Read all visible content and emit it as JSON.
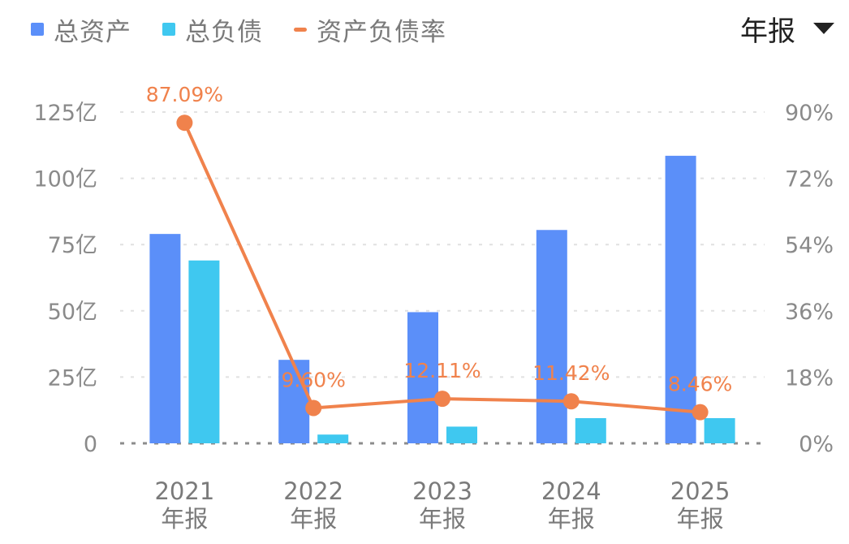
{
  "header": {
    "period_selector": {
      "label": "年报",
      "icon": "caret-down-icon"
    }
  },
  "chart_data": {
    "type": "bar",
    "categories": [
      "2021\n年报",
      "2022\n年报",
      "2023\n年报",
      "2024\n年报",
      "2025\n年报"
    ],
    "series": [
      {
        "name": "总资产",
        "kind": "bar",
        "axis": "left",
        "color": "#5b8ff9",
        "values": [
          79,
          31.5,
          49.5,
          80.5,
          108.5
        ]
      },
      {
        "name": "总负债",
        "kind": "bar",
        "axis": "left",
        "color": "#3fc8f0",
        "values": [
          69,
          3.3,
          6.3,
          9.5,
          9.5
        ]
      },
      {
        "name": "资产负债率",
        "kind": "line",
        "axis": "right",
        "color": "#f0824c",
        "values": [
          87.09,
          9.6,
          12.11,
          11.42,
          8.46
        ],
        "labels": [
          "87.09%",
          "9.60%",
          "12.11%",
          "11.42%",
          "8.46%"
        ]
      }
    ],
    "y_left": {
      "min": 0,
      "max": 125,
      "ticks": [
        0,
        25,
        50,
        75,
        100,
        125
      ],
      "tick_labels": [
        "0",
        "25亿",
        "50亿",
        "75亿",
        "100亿",
        "125亿"
      ]
    },
    "y_right": {
      "min": 0,
      "max": 90,
      "ticks": [
        0,
        18,
        36,
        54,
        72,
        90
      ],
      "tick_labels": [
        "0%",
        "18%",
        "36%",
        "54%",
        "72%",
        "90%"
      ]
    },
    "grid": true,
    "legend_position": "top-left"
  }
}
